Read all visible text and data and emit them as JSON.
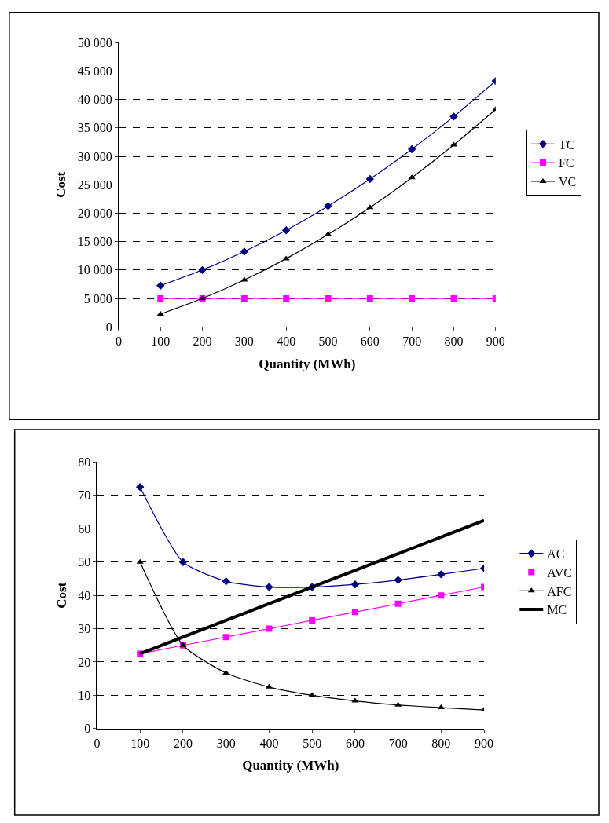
{
  "chart_data": [
    {
      "type": "line",
      "xlabel": "Quantity (MWh)",
      "ylabel": "Cost",
      "x": [
        100,
        200,
        300,
        400,
        500,
        600,
        700,
        800,
        900
      ],
      "xlim": [
        0,
        900
      ],
      "xticks": [
        0,
        100,
        200,
        300,
        400,
        500,
        600,
        700,
        800,
        900
      ],
      "ylim": [
        0,
        50000
      ],
      "yticks": [
        0,
        {
          "value": 5000,
          "label": "5 000"
        },
        {
          "value": 10000,
          "label": "10 000"
        },
        {
          "value": 15000,
          "label": "15 000"
        },
        {
          "value": 20000,
          "label": "20 000"
        },
        {
          "value": 25000,
          "label": "25 000"
        },
        {
          "value": 30000,
          "label": "30 000"
        },
        {
          "value": 35000,
          "label": "35 000"
        },
        {
          "value": 40000,
          "label": "40 000"
        },
        {
          "value": 45000,
          "label": "45 000"
        },
        {
          "value": 50000,
          "label": "50 000"
        }
      ],
      "grid": "y",
      "legend": "right",
      "line_style": "solid",
      "series": [
        {
          "name": "TC",
          "color": "#000080",
          "marker": "diamond",
          "values": [
            7250,
            10000,
            13250,
            17000,
            21250,
            26000,
            31250,
            37000,
            43250
          ]
        },
        {
          "name": "FC",
          "color": "#ff00ff",
          "marker": "square",
          "values": [
            5000,
            5000,
            5000,
            5000,
            5000,
            5000,
            5000,
            5000,
            5000
          ]
        },
        {
          "name": "VC",
          "color": "#000000",
          "marker": "triangle",
          "values": [
            2250,
            5000,
            8250,
            12000,
            16250,
            21000,
            26250,
            32000,
            38250
          ]
        }
      ]
    },
    {
      "type": "line",
      "xlabel": "Quantity (MWh)",
      "ylabel": "Cost",
      "x": [
        100,
        200,
        300,
        400,
        500,
        600,
        700,
        800,
        900
      ],
      "xlim": [
        0,
        900
      ],
      "xticks": [
        0,
        100,
        200,
        300,
        400,
        500,
        600,
        700,
        800,
        900
      ],
      "ylim": [
        0,
        80
      ],
      "yticks": [
        0,
        10,
        20,
        30,
        40,
        50,
        60,
        70,
        80
      ],
      "grid": "y",
      "legend": "right",
      "line_style": "solid",
      "series": [
        {
          "name": "AC",
          "color": "#000080",
          "marker": "diamond",
          "values": [
            72.5,
            50,
            44.2,
            42.5,
            42.5,
            43.3,
            44.6,
            46.3,
            48.1
          ]
        },
        {
          "name": "AVC",
          "color": "#ff00ff",
          "marker": "square",
          "values": [
            22.5,
            25,
            27.5,
            30,
            32.5,
            35,
            37.5,
            40,
            42.5
          ]
        },
        {
          "name": "AFC",
          "color": "#000000",
          "marker": "triangle",
          "values": [
            50,
            25,
            16.7,
            12.5,
            10,
            8.3,
            7.1,
            6.3,
            5.6
          ]
        },
        {
          "name": "MC",
          "color": "#000000",
          "marker": "none",
          "values": [
            22.5,
            27.5,
            32.5,
            37.5,
            42.5,
            47.5,
            52.5,
            57.5,
            62.5
          ]
        }
      ]
    }
  ]
}
